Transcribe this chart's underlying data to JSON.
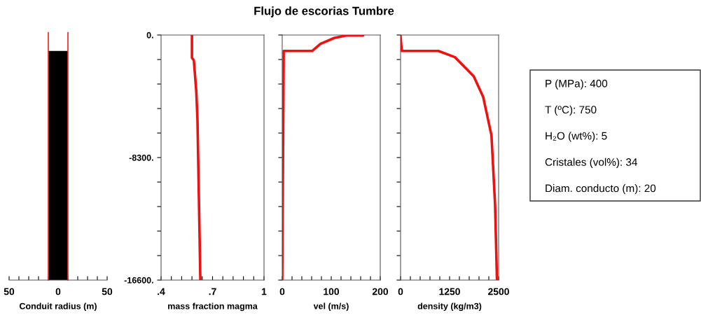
{
  "chart_data": [
    {
      "type": "line",
      "xlabel": "Conduit radius (m)",
      "xlim": [
        -50,
        50
      ],
      "ylim": [
        -16600,
        0
      ],
      "tick_labels": "x",
      "xticks": [
        {
          "value": -50,
          "label": "50"
        },
        {
          "value": -40,
          "label": null
        },
        {
          "value": -30,
          "label": null
        },
        {
          "value": -20,
          "label": null
        },
        {
          "value": -10,
          "label": null
        },
        0,
        {
          "value": 10,
          "label": null
        },
        {
          "value": 20,
          "label": null
        },
        {
          "value": 30,
          "label": null
        },
        {
          "value": 40,
          "label": null
        },
        50
      ],
      "ref_lines": [
        {
          "axis": "x",
          "value": -10,
          "color": "#ff2020"
        },
        {
          "axis": "x",
          "value": 10,
          "color": "#ff2020"
        }
      ]
    },
    {
      "type": "line",
      "xlabel": "mass fraction magma",
      "xlim": [
        0.4,
        1
      ],
      "ylim": [
        -16600,
        0
      ],
      "xticks": [
        {
          "value": 0.4,
          "label": ".4"
        },
        {
          "value": 0.46,
          "label": null
        },
        {
          "value": 0.52,
          "label": null
        },
        {
          "value": 0.58,
          "label": null
        },
        {
          "value": 0.64,
          "label": null
        },
        {
          "value": 0.7,
          "label": ".7"
        },
        {
          "value": 0.76,
          "label": null
        },
        {
          "value": 0.82,
          "label": null
        },
        {
          "value": 0.88,
          "label": null
        },
        {
          "value": 0.94,
          "label": null
        },
        1
      ],
      "yticks": [
        {
          "value": 0,
          "label": "0."
        },
        {
          "value": -1660,
          "label": null
        },
        {
          "value": -3320,
          "label": null
        },
        {
          "value": -4980,
          "label": null
        },
        {
          "value": -6640,
          "label": null
        },
        {
          "value": -8300,
          "label": "-8300."
        },
        {
          "value": -9960,
          "label": null
        },
        {
          "value": -11620,
          "label": null
        },
        {
          "value": -13280,
          "label": null
        },
        {
          "value": -14940,
          "label": null
        },
        {
          "value": -16600,
          "label": "-16600."
        }
      ],
      "series": [
        {
          "color": "#ee1111",
          "x": [
            0.58,
            0.58,
            0.591,
            0.605,
            0.612,
            0.619,
            0.629
          ],
          "values": [
            0,
            -1550,
            -1710,
            -3770,
            -5670,
            -10100,
            -16600
          ]
        }
      ]
    },
    {
      "type": "line",
      "xlabel": "vel (m/s)",
      "xlim": [
        0,
        200
      ],
      "ylim": [
        -16600,
        0
      ],
      "tick_labels": "x",
      "xticks": [
        0,
        {
          "value": 20,
          "label": null
        },
        {
          "value": 40,
          "label": null
        },
        {
          "value": 60,
          "label": null
        },
        {
          "value": 80,
          "label": null
        },
        100,
        {
          "value": 120,
          "label": null
        },
        {
          "value": 140,
          "label": null
        },
        {
          "value": 160,
          "label": null
        },
        {
          "value": 180,
          "label": null
        },
        200
      ],
      "yticks": [
        0,
        -1660,
        -3320,
        -4980,
        -6640,
        -8300,
        -9960,
        -11620,
        -13280,
        -14940,
        -16600
      ],
      "series": [
        {
          "color": "#ee1111",
          "x": [
            0,
            3,
            61,
            78,
            106,
            130,
            165
          ],
          "values": [
            -16600,
            -1080,
            -1080,
            -600,
            -200,
            -30,
            -30
          ]
        }
      ]
    },
    {
      "type": "line",
      "xlabel": "density (kg/m3)",
      "xlim": [
        0,
        2500
      ],
      "ylim": [
        -16600,
        0
      ],
      "tick_labels": "x",
      "xticks": [
        0,
        {
          "value": 250,
          "label": null
        },
        {
          "value": 500,
          "label": null
        },
        {
          "value": 750,
          "label": null
        },
        {
          "value": 1000,
          "label": null
        },
        1250,
        {
          "value": 1500,
          "label": null
        },
        {
          "value": 1750,
          "label": null
        },
        {
          "value": 2000,
          "label": null
        },
        {
          "value": 2250,
          "label": null
        },
        2500
      ],
      "yticks": [
        0,
        -1660,
        -3320,
        -4980,
        -6640,
        -8300,
        -9960,
        -11620,
        -13280,
        -14940,
        -16600
      ],
      "series": [
        {
          "color": "#ee1111",
          "x": [
            2458,
            2410,
            2318,
            2107,
            1866,
            1385,
            963,
            30,
            0,
            0
          ],
          "values": [
            -16600,
            -11500,
            -6800,
            -4200,
            -2800,
            -1500,
            -1080,
            -1080,
            -130,
            0
          ]
        }
      ]
    },
    {
      "type": "other",
      "title": "Flujo de escorias Tumbre",
      "annotations": [
        "P (MPa): 400",
        "T (ºC): 750",
        "H₂O (wt%): 5",
        "Cristales (vol%): 34",
        "Diam. conducto (m): 20"
      ]
    }
  ]
}
